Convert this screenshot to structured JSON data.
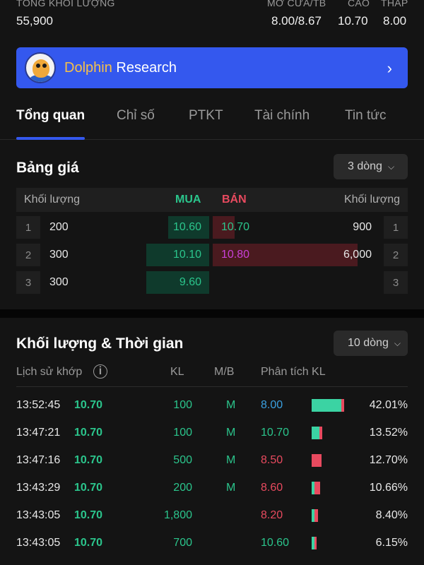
{
  "top_stats": {
    "total_volume_label": "TỔNG KHỐI LƯỢNG",
    "total_volume": "55,900",
    "open_avg_label": "MỞ CỬA/TB",
    "open_avg": "8.00/8.67",
    "high_label": "CAO",
    "high": "10.70",
    "low_label": "THẤP",
    "low": "8.00"
  },
  "banner": {
    "title_part1": "Dolphin",
    "title_part2": "Research",
    "icon": "chevron-right-icon"
  },
  "tabs": [
    "Tổng quan",
    "Chỉ số",
    "PTKT",
    "Tài chính",
    "Tin tức"
  ],
  "active_tab": 0,
  "order_book": {
    "title": "Bảng giá",
    "dropdown": "3 dòng",
    "header": {
      "vol_left": "Khối lượng",
      "buy": "MUA",
      "sell": "BÁN",
      "vol_right": "Khối lượng"
    },
    "rows": [
      {
        "idx": "1",
        "bid_vol": "200",
        "bid_price": "10.60",
        "ask_price": "10.70",
        "ask_vol": "900",
        "ask_color": "#2bc58c",
        "bid_fraction": 0.1,
        "ask_fraction": 0.15
      },
      {
        "idx": "2",
        "bid_vol": "300",
        "bid_price": "10.10",
        "ask_price": "10.80",
        "ask_vol": "6,000",
        "ask_color": "#c940d8",
        "bid_fraction": 0.15,
        "ask_fraction": 1.0
      },
      {
        "idx": "3",
        "bid_vol": "300",
        "bid_price": "9.60",
        "ask_price": "",
        "ask_vol": "",
        "ask_color": "#2bc58c",
        "bid_fraction": 0.15,
        "ask_fraction": 0
      }
    ]
  },
  "time_sales": {
    "title": "Khối lượng & Thời gian",
    "dropdown": "10 dòng",
    "header": {
      "history": "Lịch sử khớp",
      "kl": "KL",
      "mb": "M/B",
      "analysis": "Phân tích KL"
    },
    "rows": [
      {
        "time": "13:52:45",
        "price": "10.70",
        "kl": "100",
        "mb": "M",
        "a_price": "8.00",
        "a_color": "#3aa0e0",
        "pct": "42.01%",
        "share": 0.4201,
        "buy_share": 0.92
      },
      {
        "time": "13:47:21",
        "price": "10.70",
        "kl": "100",
        "mb": "M",
        "a_price": "10.70",
        "a_color": "#2bc58c",
        "pct": "13.52%",
        "share": 0.1352,
        "buy_share": 0.7
      },
      {
        "time": "13:47:16",
        "price": "10.70",
        "kl": "500",
        "mb": "M",
        "a_price": "8.50",
        "a_color": "#e84a5f",
        "pct": "12.70%",
        "share": 0.127,
        "buy_share": 0.0
      },
      {
        "time": "13:43:29",
        "price": "10.70",
        "kl": "200",
        "mb": "M",
        "a_price": "8.60",
        "a_color": "#e84a5f",
        "pct": "10.66%",
        "share": 0.1066,
        "buy_share": 0.3
      },
      {
        "time": "13:43:05",
        "price": "10.70",
        "kl": "1,800",
        "mb": "",
        "a_price": "8.20",
        "a_color": "#e84a5f",
        "pct": "8.40%",
        "share": 0.084,
        "buy_share": 0.4
      },
      {
        "time": "13:43:05",
        "price": "10.70",
        "kl": "700",
        "mb": "",
        "a_price": "10.60",
        "a_color": "#2bc58c",
        "pct": "6.15%",
        "share": 0.0615,
        "buy_share": 0.5
      }
    ]
  }
}
